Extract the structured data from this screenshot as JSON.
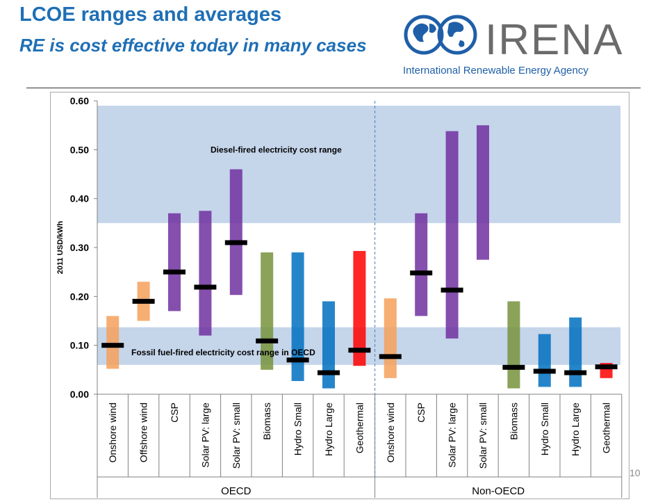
{
  "slide": {
    "title": "LCOE ranges and averages",
    "subtitle": "RE is cost effective today in many cases",
    "page_number": "10"
  },
  "logo": {
    "name": "IRENA",
    "tagline": "International Renewable Energy Agency",
    "colors": {
      "primary": "#1f5fa8",
      "text": "#6b6b6b"
    }
  },
  "chart_data": {
    "type": "bar",
    "ylabel": "2011 USD/kWh",
    "ylim": [
      0,
      0.6
    ],
    "yticks": [
      "0.00",
      "0.10",
      "0.20",
      "0.30",
      "0.40",
      "0.50",
      "0.60"
    ],
    "ytick_values": [
      0,
      0.1,
      0.2,
      0.3,
      0.4,
      0.5,
      0.6
    ],
    "bands": [
      {
        "label": "Diesel-fired electricity cost range",
        "low": 0.35,
        "high": 0.59,
        "color": "#c5d5ea"
      },
      {
        "label": "Fossil fuel-fired electricity cost range in OECD",
        "low": 0.06,
        "high": 0.137,
        "color": "#c5d5ea"
      }
    ],
    "groups": [
      {
        "name": "OECD",
        "categories": [
          {
            "label": "Onshore wind",
            "low": 0.052,
            "high": 0.16,
            "avg": 0.1,
            "color": "#f5a05a"
          },
          {
            "label": "Offshore wind",
            "low": 0.15,
            "high": 0.23,
            "avg": 0.19,
            "color": "#f5a05a"
          },
          {
            "label": "CSP",
            "low": 0.17,
            "high": 0.37,
            "avg": 0.25,
            "color": "#7030a0"
          },
          {
            "label": "Solar PV: large",
            "low": 0.12,
            "high": 0.375,
            "avg": 0.219,
            "color": "#7030a0"
          },
          {
            "label": "Solar PV: small",
            "low": 0.203,
            "high": 0.46,
            "avg": 0.31,
            "color": "#7030a0"
          },
          {
            "label": "Biomass",
            "low": 0.05,
            "high": 0.29,
            "avg": 0.109,
            "color": "#77933c"
          },
          {
            "label": "Hydro Small",
            "low": 0.027,
            "high": 0.29,
            "avg": 0.07,
            "color": "#0070c0"
          },
          {
            "label": "Hydro Large",
            "low": 0.012,
            "high": 0.19,
            "avg": 0.044,
            "color": "#0070c0"
          },
          {
            "label": "Geothermal",
            "low": 0.058,
            "high": 0.293,
            "avg": 0.09,
            "color": "#ff0000"
          }
        ]
      },
      {
        "name": "Non-OECD",
        "categories": [
          {
            "label": "Onshore wind",
            "low": 0.033,
            "high": 0.196,
            "avg": 0.077,
            "color": "#f5a05a"
          },
          {
            "label": "CSP",
            "low": 0.16,
            "high": 0.37,
            "avg": 0.248,
            "color": "#7030a0"
          },
          {
            "label": "Solar PV: large",
            "low": 0.114,
            "high": 0.538,
            "avg": 0.213,
            "color": "#7030a0"
          },
          {
            "label": "Solar PV: small",
            "low": 0.275,
            "high": 0.55,
            "avg": null,
            "color": "#7030a0"
          },
          {
            "label": "Biomass",
            "low": 0.012,
            "high": 0.19,
            "avg": 0.055,
            "color": "#77933c"
          },
          {
            "label": "Hydro Small",
            "low": 0.015,
            "high": 0.123,
            "avg": 0.047,
            "color": "#0070c0"
          },
          {
            "label": "Hydro Large",
            "low": 0.015,
            "high": 0.157,
            "avg": 0.044,
            "color": "#0070c0"
          },
          {
            "label": "Geothermal",
            "low": 0.033,
            "high": 0.064,
            "avg": 0.056,
            "color": "#ff0000"
          }
        ]
      }
    ],
    "grid": false,
    "legend": "none"
  }
}
